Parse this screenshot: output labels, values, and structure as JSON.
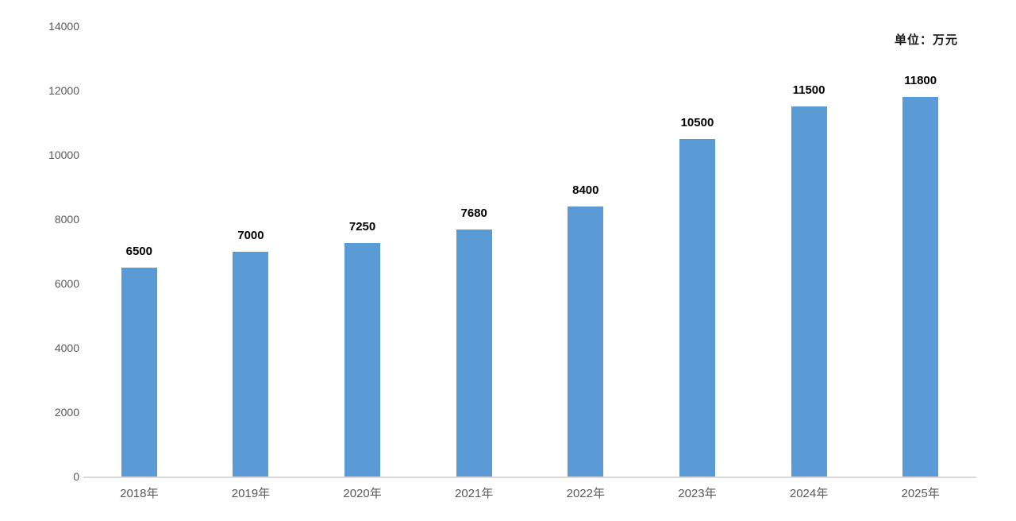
{
  "unit_label": "单位：万元",
  "chart_data": {
    "type": "bar",
    "title": "",
    "xlabel": "",
    "ylabel": "",
    "unit_label": "单位：万元",
    "categories": [
      "2018年",
      "2019年",
      "2020年",
      "2021年",
      "2022年",
      "2023年",
      "2024年",
      "2025年"
    ],
    "values": [
      6500,
      7000,
      7250,
      7680,
      8400,
      10500,
      11500,
      11800
    ],
    "ylim": [
      0,
      14000
    ],
    "yticks": [
      0,
      2000,
      4000,
      6000,
      8000,
      10000,
      12000,
      14000
    ],
    "bar_color": "#5B9BD5",
    "axis_line_color": "#D9D9D9",
    "grid": false,
    "legend_position": "none",
    "data_labels": true
  }
}
